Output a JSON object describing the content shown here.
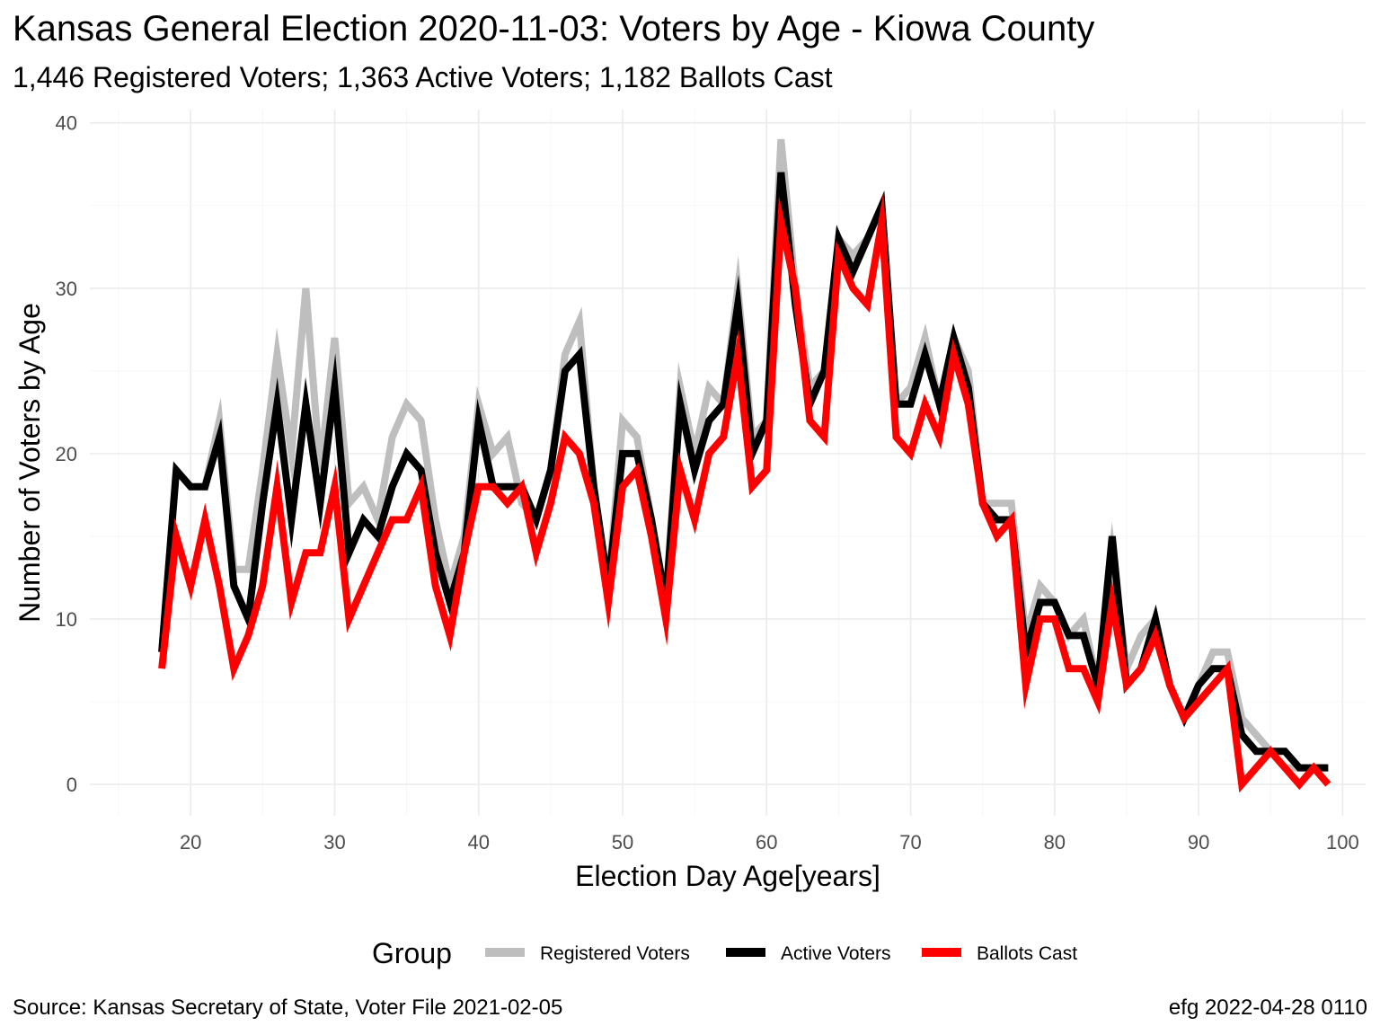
{
  "title": "Kansas General Election 2020-11-03:  Voters by Age - Kiowa County",
  "subtitle": "1,446 Registered Voters; 1,363 Active Voters; 1,182 Ballots Cast",
  "caption_left": "Source:  Kansas Secretary of State, Voter File  2021-02-05",
  "caption_right": "efg 2022-04-28 0110",
  "chart_data": {
    "type": "line",
    "xlabel": "Election Day Age[years]",
    "ylabel": "Number of Voters by Age",
    "xlim": [
      18,
      99
    ],
    "ylim": [
      0,
      40
    ],
    "xticks": [
      20,
      30,
      40,
      50,
      60,
      70,
      80,
      90,
      100
    ],
    "yticks": [
      0,
      10,
      20,
      30,
      40
    ],
    "grid": true,
    "legend_title": "Group",
    "legend_position": "bottom",
    "x": [
      18,
      19,
      20,
      21,
      22,
      23,
      24,
      25,
      26,
      27,
      28,
      29,
      30,
      31,
      32,
      33,
      34,
      35,
      36,
      37,
      38,
      39,
      40,
      41,
      42,
      43,
      44,
      45,
      46,
      47,
      48,
      49,
      50,
      51,
      52,
      53,
      54,
      55,
      56,
      57,
      58,
      59,
      60,
      61,
      62,
      63,
      64,
      65,
      66,
      67,
      68,
      69,
      70,
      71,
      72,
      73,
      74,
      75,
      76,
      77,
      78,
      79,
      80,
      81,
      82,
      83,
      84,
      85,
      86,
      87,
      88,
      89,
      90,
      91,
      92,
      93,
      94,
      95,
      96,
      97,
      98,
      99
    ],
    "series": [
      {
        "name": "Registered Voters",
        "color": "#bebebe",
        "values": [
          8,
          19,
          18,
          18,
          22,
          13,
          13,
          19,
          26,
          20,
          30,
          19,
          27,
          17,
          18,
          16,
          21,
          23,
          22,
          16,
          12,
          15,
          23,
          20,
          21,
          17,
          16,
          19,
          26,
          28,
          18,
          12,
          22,
          21,
          16,
          11,
          24,
          20,
          24,
          23,
          30,
          21,
          22,
          39,
          30,
          24,
          25,
          33,
          32,
          33,
          35,
          23,
          24,
          27,
          23,
          27,
          25,
          17,
          17,
          17,
          9,
          12,
          11,
          9,
          10,
          6,
          14,
          7,
          9,
          10,
          6,
          4,
          6,
          8,
          8,
          4,
          3,
          2,
          1,
          1,
          1,
          1
        ]
      },
      {
        "name": "Active Voters",
        "color": "#000000",
        "values": [
          8,
          19,
          18,
          18,
          21,
          12,
          10,
          17,
          23,
          16,
          23,
          17,
          24,
          14,
          16,
          15,
          18,
          20,
          19,
          14,
          11,
          14,
          22,
          18,
          18,
          18,
          16,
          19,
          25,
          26,
          18,
          12,
          20,
          20,
          16,
          11,
          23,
          19,
          22,
          23,
          29,
          20,
          22,
          37,
          29,
          23,
          25,
          33,
          31,
          33,
          35,
          23,
          23,
          26,
          23,
          27,
          24,
          17,
          16,
          16,
          8,
          11,
          11,
          9,
          9,
          6,
          15,
          6,
          7,
          10,
          6,
          4,
          6,
          7,
          7,
          3,
          2,
          2,
          2,
          1,
          1,
          1
        ]
      },
      {
        "name": "Ballots Cast",
        "color": "#ff0000",
        "values": [
          7,
          15,
          12,
          16,
          12,
          7,
          9,
          12,
          18,
          11,
          14,
          14,
          18,
          10,
          12,
          14,
          16,
          16,
          18,
          12,
          9,
          14,
          18,
          18,
          17,
          18,
          14,
          17,
          21,
          20,
          17,
          11,
          18,
          19,
          15,
          10,
          19,
          16,
          20,
          21,
          26,
          18,
          19,
          34,
          30,
          22,
          21,
          32,
          30,
          29,
          34,
          21,
          20,
          23,
          21,
          26,
          23,
          17,
          15,
          16,
          6,
          10,
          10,
          7,
          7,
          5,
          11,
          6,
          7,
          9,
          6,
          4,
          5,
          6,
          7,
          0,
          1,
          2,
          1,
          0,
          1,
          0
        ]
      }
    ]
  }
}
